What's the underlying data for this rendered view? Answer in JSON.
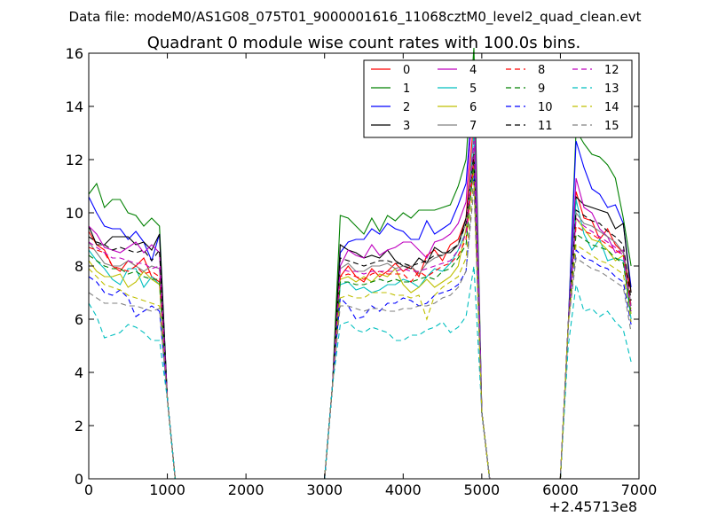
{
  "chart_data": {
    "type": "line",
    "suptitle": "Data file: modeM0/AS1G08_075T01_9000001616_11068cztM0_level2_quad_clean.evt",
    "title": "Quadrant 0 module wise count rates with 100.0s bins.",
    "xlabel": "",
    "ylabel": "",
    "x_offset_label": "+2.45713e8",
    "xlim": [
      0,
      7000
    ],
    "ylim": [
      0,
      16
    ],
    "xticks": [
      "0",
      "1000",
      "2000",
      "3000",
      "4000",
      "5000",
      "6000",
      "7000"
    ],
    "yticks": [
      "0",
      "2",
      "4",
      "6",
      "8",
      "10",
      "12",
      "14",
      "16"
    ],
    "grid": false,
    "legend_position": "top-right",
    "legend_columns": 4,
    "x": [
      0,
      100,
      200,
      300,
      400,
      500,
      600,
      700,
      800,
      900,
      1000,
      1100,
      1200,
      1300,
      1400,
      1500,
      1600,
      1700,
      1800,
      1900,
      2000,
      2100,
      2200,
      2300,
      2400,
      2500,
      2600,
      2700,
      2800,
      2900,
      3000,
      3100,
      3200,
      3300,
      3400,
      3500,
      3600,
      3700,
      3800,
      3900,
      4000,
      4100,
      4200,
      4300,
      4400,
      4500,
      4600,
      4700,
      4800,
      4900,
      5000,
      5100,
      5200,
      5300,
      5400,
      5500,
      5600,
      5700,
      5800,
      5900,
      6000,
      6100,
      6200,
      6300,
      6400,
      6500,
      6600,
      6700,
      6800,
      6900
    ],
    "series": [
      {
        "name": "0",
        "color": "#ff0000",
        "dash": "solid",
        "values": [
          9.3,
          8.8,
          8.6,
          8.0,
          7.8,
          8.2,
          8.0,
          8.3,
          7.6,
          7.4,
          3.0,
          0,
          0,
          0,
          0,
          0,
          0,
          0,
          0,
          0,
          0,
          0,
          0,
          0,
          0,
          0,
          0,
          0,
          0,
          0,
          0,
          3.5,
          7.6,
          8.0,
          7.6,
          7.4,
          7.9,
          7.6,
          7.8,
          8.1,
          7.8,
          8.0,
          7.6,
          8.4,
          8.6,
          8.2,
          8.8,
          9.0,
          9.8,
          13.6,
          2.5,
          0,
          0,
          0,
          0,
          0,
          0,
          0,
          0,
          0,
          0,
          5.8,
          10.8,
          9.8,
          9.7,
          9.0,
          9.4,
          8.8,
          8.5,
          7.0
        ]
      },
      {
        "name": "1",
        "color": "#008000",
        "dash": "solid",
        "values": [
          10.7,
          11.1,
          10.2,
          10.5,
          10.5,
          10.0,
          9.9,
          9.5,
          9.8,
          9.5,
          3.0,
          0,
          0,
          0,
          0,
          0,
          0,
          0,
          0,
          0,
          0,
          0,
          0,
          0,
          0,
          0,
          0,
          0,
          0,
          0,
          0,
          3.5,
          9.9,
          9.8,
          9.5,
          9.2,
          9.8,
          9.3,
          9.9,
          9.7,
          10.0,
          9.8,
          10.1,
          10.1,
          10.1,
          10.2,
          10.3,
          11.0,
          12.0,
          16.2,
          2.5,
          0,
          0,
          0,
          0,
          0,
          0,
          0,
          0,
          0,
          0,
          5.8,
          13.1,
          12.6,
          12.2,
          12.1,
          11.8,
          11.3,
          9.8,
          8.0
        ]
      },
      {
        "name": "2",
        "color": "#0000ff",
        "dash": "solid",
        "values": [
          10.6,
          10.0,
          9.5,
          9.4,
          9.4,
          9.0,
          9.3,
          8.9,
          8.2,
          9.2,
          3.0,
          0,
          0,
          0,
          0,
          0,
          0,
          0,
          0,
          0,
          0,
          0,
          0,
          0,
          0,
          0,
          0,
          0,
          0,
          0,
          0,
          3.5,
          8.5,
          8.9,
          9.0,
          9.0,
          9.4,
          9.2,
          9.6,
          9.4,
          9.3,
          9.0,
          9.0,
          9.7,
          9.2,
          9.4,
          9.6,
          10.3,
          11.1,
          15.0,
          2.5,
          0,
          0,
          0,
          0,
          0,
          0,
          0,
          0,
          0,
          0,
          5.8,
          12.7,
          11.7,
          10.9,
          10.7,
          10.2,
          10.3,
          9.6,
          7.2
        ]
      },
      {
        "name": "3",
        "color": "#000000",
        "dash": "solid",
        "values": [
          9.5,
          8.8,
          8.8,
          9.1,
          9.1,
          9.1,
          8.8,
          8.9,
          8.6,
          9.2,
          3.0,
          0,
          0,
          0,
          0,
          0,
          0,
          0,
          0,
          0,
          0,
          0,
          0,
          0,
          0,
          0,
          0,
          0,
          0,
          0,
          0,
          3.5,
          8.8,
          8.6,
          8.5,
          8.3,
          8.4,
          8.3,
          8.6,
          8.2,
          8.0,
          7.9,
          8.3,
          8.1,
          8.7,
          8.5,
          8.5,
          8.8,
          9.8,
          12.3,
          2.5,
          0,
          0,
          0,
          0,
          0,
          0,
          0,
          0,
          0,
          0,
          5.8,
          10.6,
          10.3,
          10.2,
          10.1,
          10.0,
          9.4,
          9.6,
          7.0
        ]
      },
      {
        "name": "4",
        "color": "#bf00bf",
        "dash": "solid",
        "values": [
          9.5,
          9.2,
          8.7,
          8.6,
          8.5,
          8.7,
          8.9,
          8.5,
          8.8,
          8.5,
          3.0,
          0,
          0,
          0,
          0,
          0,
          0,
          0,
          0,
          0,
          0,
          0,
          0,
          0,
          0,
          0,
          0,
          0,
          0,
          0,
          0,
          3.5,
          8.0,
          8.6,
          8.4,
          8.3,
          8.8,
          8.4,
          8.6,
          8.7,
          8.9,
          8.9,
          8.6,
          8.3,
          8.9,
          9.0,
          9.2,
          9.6,
          10.4,
          14.8,
          2.5,
          0,
          0,
          0,
          0,
          0,
          0,
          0,
          0,
          0,
          0,
          5.8,
          11.3,
          10.2,
          10.0,
          9.4,
          9.1,
          8.5,
          8.6,
          6.5
        ]
      },
      {
        "name": "5",
        "color": "#00bfbf",
        "dash": "solid",
        "values": [
          8.6,
          8.2,
          7.9,
          7.5,
          7.3,
          7.9,
          7.9,
          7.2,
          7.6,
          7.3,
          3.0,
          0,
          0,
          0,
          0,
          0,
          0,
          0,
          0,
          0,
          0,
          0,
          0,
          0,
          0,
          0,
          0,
          0,
          0,
          0,
          0,
          3.5,
          7.3,
          7.4,
          7.1,
          7.2,
          7.0,
          7.1,
          7.3,
          7.3,
          7.5,
          7.4,
          7.2,
          7.6,
          7.9,
          7.8,
          8.1,
          8.6,
          9.3,
          13.0,
          2.5,
          0,
          0,
          0,
          0,
          0,
          0,
          0,
          0,
          0,
          0,
          5.8,
          10.5,
          9.2,
          8.6,
          9.0,
          8.2,
          8.3,
          8.2,
          6.0
        ]
      },
      {
        "name": "6",
        "color": "#bfbf00",
        "dash": "solid",
        "values": [
          8.2,
          7.8,
          7.6,
          7.6,
          7.7,
          7.2,
          7.4,
          7.8,
          7.5,
          7.3,
          3.0,
          0,
          0,
          0,
          0,
          0,
          0,
          0,
          0,
          0,
          0,
          0,
          0,
          0,
          0,
          0,
          0,
          0,
          0,
          0,
          0,
          3.5,
          7.5,
          7.6,
          7.4,
          7.6,
          7.4,
          7.7,
          7.6,
          7.9,
          7.3,
          7.0,
          7.2,
          7.5,
          7.2,
          7.4,
          7.6,
          8.0,
          9.4,
          11.6,
          2.5,
          0,
          0,
          0,
          0,
          0,
          0,
          0,
          0,
          0,
          0,
          5.8,
          9.8,
          9.4,
          9.0,
          8.9,
          8.6,
          8.2,
          8.4,
          6.2
        ]
      },
      {
        "name": "7",
        "color": "#808080",
        "dash": "solid",
        "values": [
          8.9,
          8.5,
          8.1,
          8.0,
          8.0,
          8.2,
          8.0,
          7.8,
          8.0,
          7.9,
          3.0,
          0,
          0,
          0,
          0,
          0,
          0,
          0,
          0,
          0,
          0,
          0,
          0,
          0,
          0,
          0,
          0,
          0,
          0,
          0,
          0,
          3.5,
          7.9,
          8.1,
          7.8,
          7.8,
          8.0,
          8.0,
          8.1,
          7.9,
          8.0,
          8.0,
          7.7,
          8.1,
          8.3,
          8.4,
          8.6,
          8.8,
          9.6,
          12.3,
          2.5,
          0,
          0,
          0,
          0,
          0,
          0,
          0,
          0,
          0,
          0,
          5.8,
          10.0,
          9.6,
          9.5,
          9.3,
          9.1,
          8.9,
          8.5,
          6.5
        ]
      },
      {
        "name": "8",
        "color": "#ff0000",
        "dash": "dashed",
        "values": [
          8.7,
          8.6,
          8.5,
          8.0,
          7.9,
          7.8,
          8.0,
          7.7,
          7.8,
          7.6,
          3.0,
          0,
          0,
          0,
          0,
          0,
          0,
          0,
          0,
          0,
          0,
          0,
          0,
          0,
          0,
          0,
          0,
          0,
          0,
          0,
          0,
          3.5,
          7.6,
          7.7,
          7.6,
          7.5,
          7.7,
          7.8,
          7.7,
          7.7,
          7.7,
          7.4,
          7.8,
          7.6,
          7.8,
          8.0,
          8.1,
          8.4,
          9.0,
          12.0,
          2.5,
          0,
          0,
          0,
          0,
          0,
          0,
          0,
          0,
          0,
          0,
          5.8,
          9.5,
          9.3,
          9.2,
          9.0,
          8.8,
          8.6,
          8.4,
          6.4
        ]
      },
      {
        "name": "9",
        "color": "#008000",
        "dash": "dashed",
        "values": [
          8.4,
          8.2,
          8.0,
          7.9,
          7.9,
          7.7,
          7.8,
          7.6,
          7.5,
          7.5,
          3.0,
          0,
          0,
          0,
          0,
          0,
          0,
          0,
          0,
          0,
          0,
          0,
          0,
          0,
          0,
          0,
          0,
          0,
          0,
          0,
          0,
          3.5,
          7.4,
          7.4,
          7.3,
          7.3,
          7.4,
          7.5,
          7.4,
          7.5,
          7.4,
          7.4,
          7.5,
          7.6,
          7.5,
          7.8,
          7.9,
          8.3,
          8.8,
          11.9,
          2.5,
          0,
          0,
          0,
          0,
          0,
          0,
          0,
          0,
          0,
          0,
          5.8,
          9.2,
          9.0,
          8.8,
          8.7,
          8.6,
          8.3,
          8.1,
          6.2
        ]
      },
      {
        "name": "10",
        "color": "#0000ff",
        "dash": "dashed",
        "values": [
          7.6,
          7.4,
          7.0,
          6.9,
          7.1,
          6.8,
          6.1,
          6.3,
          6.5,
          6.3,
          3.0,
          0,
          0,
          0,
          0,
          0,
          0,
          0,
          0,
          0,
          0,
          0,
          0,
          0,
          0,
          0,
          0,
          0,
          0,
          0,
          0,
          3.5,
          6.8,
          6.5,
          6.0,
          6.1,
          6.5,
          6.3,
          6.6,
          6.6,
          6.8,
          6.7,
          6.5,
          6.6,
          6.9,
          7.0,
          7.1,
          7.3,
          7.8,
          11.4,
          2.5,
          0,
          0,
          0,
          0,
          0,
          0,
          0,
          0,
          0,
          0,
          5.8,
          8.6,
          8.3,
          8.2,
          8.0,
          7.9,
          7.6,
          7.4,
          5.8
        ]
      },
      {
        "name": "11",
        "color": "#000000",
        "dash": "dashed",
        "values": [
          9.1,
          8.9,
          8.8,
          8.6,
          8.7,
          8.6,
          8.5,
          8.6,
          8.2,
          8.6,
          3.0,
          0,
          0,
          0,
          0,
          0,
          0,
          0,
          0,
          0,
          0,
          0,
          0,
          0,
          0,
          0,
          0,
          0,
          0,
          0,
          0,
          3.5,
          8.3,
          8.2,
          8.1,
          8.0,
          8.1,
          8.2,
          8.2,
          8.1,
          8.1,
          8.0,
          8.1,
          8.2,
          8.4,
          8.4,
          8.6,
          8.8,
          9.6,
          12.2,
          2.5,
          0,
          0,
          0,
          0,
          0,
          0,
          0,
          0,
          0,
          0,
          5.8,
          10.1,
          9.9,
          9.7,
          9.6,
          9.3,
          9.1,
          8.8,
          6.7
        ]
      },
      {
        "name": "12",
        "color": "#bf00bf",
        "dash": "dashed",
        "values": [
          8.9,
          8.7,
          8.5,
          8.3,
          8.3,
          8.2,
          8.1,
          8.1,
          7.9,
          8.0,
          3.0,
          0,
          0,
          0,
          0,
          0,
          0,
          0,
          0,
          0,
          0,
          0,
          0,
          0,
          0,
          0,
          0,
          0,
          0,
          0,
          0,
          3.5,
          7.9,
          7.8,
          7.8,
          7.7,
          7.8,
          7.8,
          7.8,
          7.8,
          7.9,
          7.8,
          7.8,
          7.9,
          8.0,
          8.1,
          8.2,
          8.6,
          9.2,
          12.7,
          2.5,
          0,
          0,
          0,
          0,
          0,
          0,
          0,
          0,
          0,
          0,
          5.8,
          9.8,
          9.5,
          9.3,
          9.1,
          8.9,
          8.7,
          8.4,
          6.3
        ]
      },
      {
        "name": "13",
        "color": "#00bfbf",
        "dash": "dashed",
        "values": [
          6.6,
          6.1,
          5.3,
          5.4,
          5.5,
          5.8,
          5.7,
          5.5,
          5.2,
          5.2,
          3.0,
          0,
          0,
          0,
          0,
          0,
          0,
          0,
          0,
          0,
          0,
          0,
          0,
          0,
          0,
          0,
          0,
          0,
          0,
          0,
          0,
          3.5,
          5.8,
          5.9,
          5.6,
          5.5,
          5.7,
          5.6,
          5.5,
          5.2,
          5.2,
          5.4,
          5.4,
          5.6,
          5.7,
          5.9,
          5.5,
          5.7,
          6.1,
          8.0,
          2.5,
          0,
          0,
          0,
          0,
          0,
          0,
          0,
          0,
          0,
          0,
          5.0,
          7.3,
          6.3,
          6.4,
          6.1,
          6.3,
          5.9,
          5.6,
          4.4
        ]
      },
      {
        "name": "14",
        "color": "#bfbf00",
        "dash": "dashed",
        "values": [
          7.9,
          7.6,
          7.3,
          7.2,
          7.1,
          6.9,
          6.8,
          6.7,
          6.6,
          6.5,
          3.0,
          0,
          0,
          0,
          0,
          0,
          0,
          0,
          0,
          0,
          0,
          0,
          0,
          0,
          0,
          0,
          0,
          0,
          0,
          0,
          0,
          3.5,
          6.8,
          6.9,
          6.8,
          6.8,
          7.0,
          7.0,
          7.0,
          6.9,
          6.9,
          6.8,
          6.9,
          6.0,
          6.9,
          7.2,
          7.4,
          7.6,
          8.3,
          11.2,
          2.5,
          0,
          0,
          0,
          0,
          0,
          0,
          0,
          0,
          0,
          0,
          5.8,
          8.8,
          8.6,
          8.4,
          8.2,
          8.1,
          7.9,
          7.7,
          5.9
        ]
      },
      {
        "name": "15",
        "color": "#808080",
        "dash": "dashed",
        "values": [
          7.0,
          6.8,
          6.6,
          6.6,
          6.6,
          6.5,
          6.5,
          6.4,
          6.3,
          6.4,
          3.0,
          0,
          0,
          0,
          0,
          0,
          0,
          0,
          0,
          0,
          0,
          0,
          0,
          0,
          0,
          0,
          0,
          0,
          0,
          0,
          0,
          3.5,
          6.5,
          6.5,
          6.4,
          6.3,
          6.4,
          6.4,
          6.3,
          6.3,
          6.4,
          6.4,
          6.5,
          6.5,
          6.6,
          6.8,
          6.9,
          7.2,
          7.8,
          10.9,
          2.5,
          0,
          0,
          0,
          0,
          0,
          0,
          0,
          0,
          0,
          0,
          5.8,
          8.3,
          8.1,
          7.9,
          7.8,
          7.6,
          7.4,
          7.2,
          5.5
        ]
      }
    ]
  }
}
